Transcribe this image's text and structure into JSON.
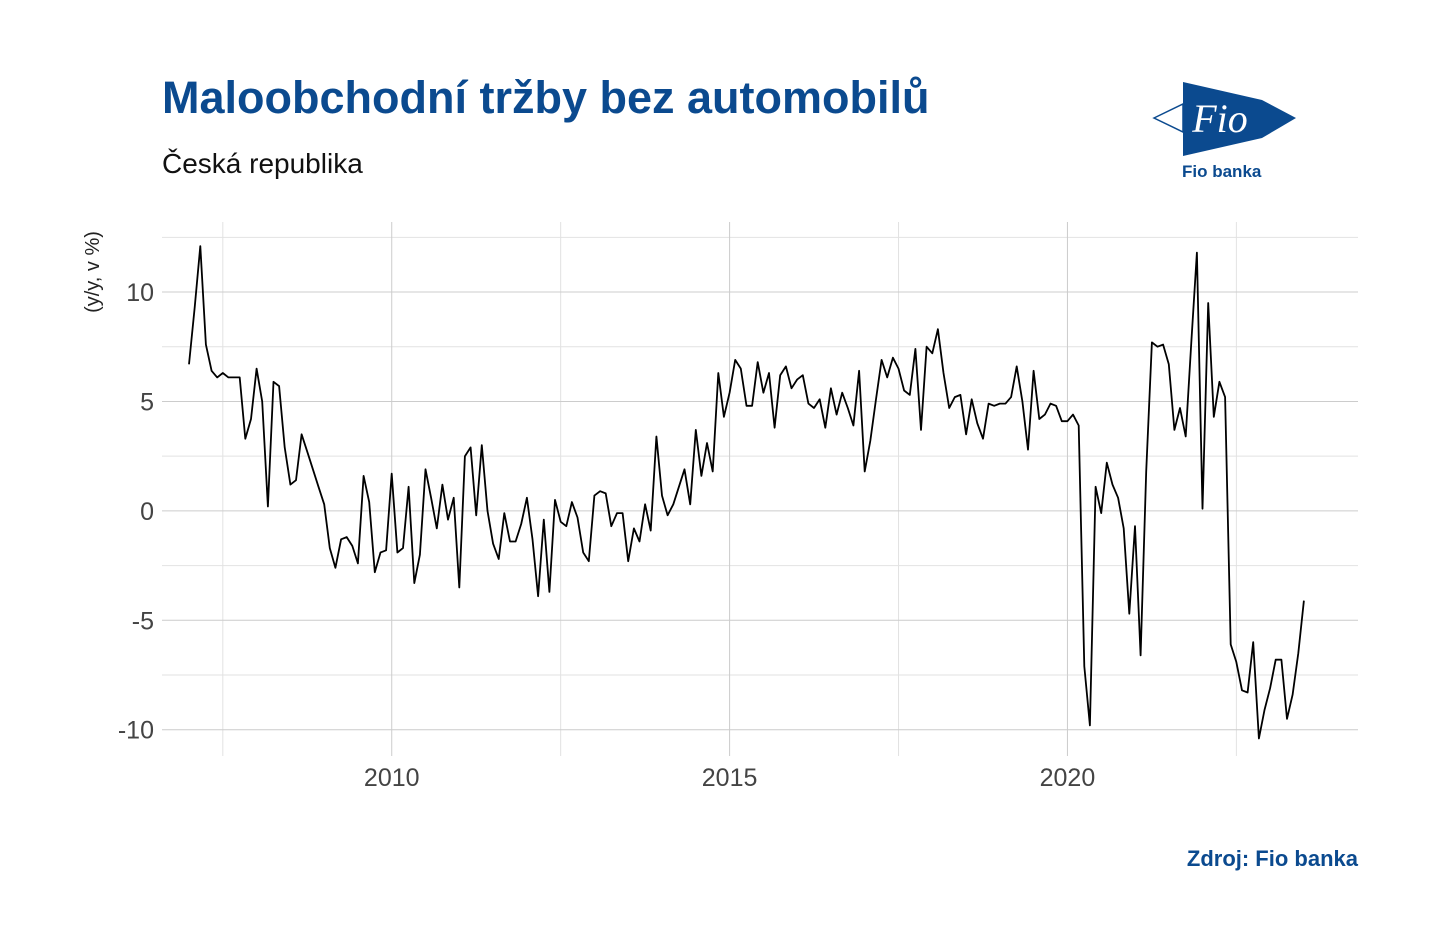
{
  "header": {
    "title": "Maloobchodní tržby bez automobilů",
    "subtitle": "Česká republika"
  },
  "logo": {
    "brand_text": "Fio",
    "caption": "Fio banka",
    "color": "#0b4a8f"
  },
  "footer": {
    "source": "Zdroj: Fio banka"
  },
  "chart_data": {
    "type": "line",
    "title": "Maloobchodní tržby bez automobilů",
    "subtitle": "Česká republika",
    "xlabel": "",
    "ylabel": "(y/y, v %)",
    "xlim": [
      2006.6,
      2024.3
    ],
    "ylim": [
      -11.2,
      13.2
    ],
    "x_ticks": [
      2010,
      2015,
      2020
    ],
    "x_tick_labels": [
      "2010",
      "2015",
      "2020"
    ],
    "y_ticks": [
      -10,
      -5,
      0,
      5,
      10
    ],
    "y_tick_labels": [
      "-10",
      "-5",
      "0",
      "5",
      "10"
    ],
    "grid": true,
    "line_color": "#000000",
    "series": [
      {
        "x_start": 2007.0,
        "x_step": 0.08333,
        "values": [
          6.7,
          9.3,
          12.1,
          7.6,
          6.4,
          6.1,
          6.3,
          6.1,
          6.1,
          6.1,
          3.3,
          4.2,
          6.5,
          5.0,
          0.2,
          5.9,
          5.7,
          2.9,
          1.2,
          1.4,
          3.5,
          2.7,
          1.9,
          1.1,
          0.3,
          -1.7,
          -2.6,
          -1.3,
          -1.2,
          -1.6,
          -2.4,
          1.6,
          0.4,
          -2.8,
          -1.9,
          -1.8,
          1.7,
          -1.9,
          -1.7,
          1.1,
          -3.3,
          -2.0,
          1.9,
          0.6,
          -0.8,
          1.2,
          -0.4,
          0.6,
          -3.5,
          2.5,
          2.9,
          -0.2,
          3.0,
          0.0,
          -1.5,
          -2.2,
          -0.1,
          -1.4,
          -1.4,
          -0.6,
          0.6,
          -1.3,
          -3.9,
          -0.4,
          -3.7,
          0.5,
          -0.5,
          -0.7,
          0.4,
          -0.3,
          -1.9,
          -2.3,
          0.7,
          0.9,
          0.8,
          -0.7,
          -0.1,
          -0.1,
          -2.3,
          -0.8,
          -1.4,
          0.3,
          -0.9,
          3.4,
          0.7,
          -0.2,
          0.3,
          1.1,
          1.9,
          0.3,
          3.7,
          1.6,
          3.1,
          1.8,
          6.3,
          4.3,
          5.4,
          6.9,
          6.5,
          4.8,
          4.8,
          6.8,
          5.4,
          6.3,
          3.8,
          6.2,
          6.6,
          5.6,
          6.0,
          6.2,
          4.9,
          4.7,
          5.1,
          3.8,
          5.6,
          4.4,
          5.4,
          4.7,
          3.9,
          6.4,
          1.8,
          3.2,
          5.1,
          6.9,
          6.1,
          7.0,
          6.5,
          5.5,
          5.3,
          7.4,
          3.7,
          7.5,
          7.2,
          8.3,
          6.3,
          4.7,
          5.2,
          5.3,
          3.5,
          5.1,
          4.0,
          3.3,
          4.9,
          4.8,
          4.9,
          4.9,
          5.2,
          6.6,
          5.0,
          2.8,
          6.4,
          4.2,
          4.4,
          4.9,
          4.8,
          4.1,
          4.1,
          4.4,
          3.9,
          -7.1,
          -9.8,
          1.1,
          -0.1,
          2.2,
          1.2,
          0.6,
          -0.8,
          -4.7,
          -0.7,
          -6.6,
          1.8,
          7.7,
          7.5,
          7.6,
          6.7,
          3.7,
          4.7,
          3.4,
          7.7,
          11.8,
          0.1,
          9.5,
          4.3,
          5.9,
          5.2,
          -6.1,
          -6.9,
          -8.2,
          -8.3,
          -6.0,
          -10.4,
          -9.1,
          -8.1,
          -6.8,
          -6.8,
          -9.5,
          -8.4,
          -6.5,
          -4.1
        ]
      }
    ]
  }
}
